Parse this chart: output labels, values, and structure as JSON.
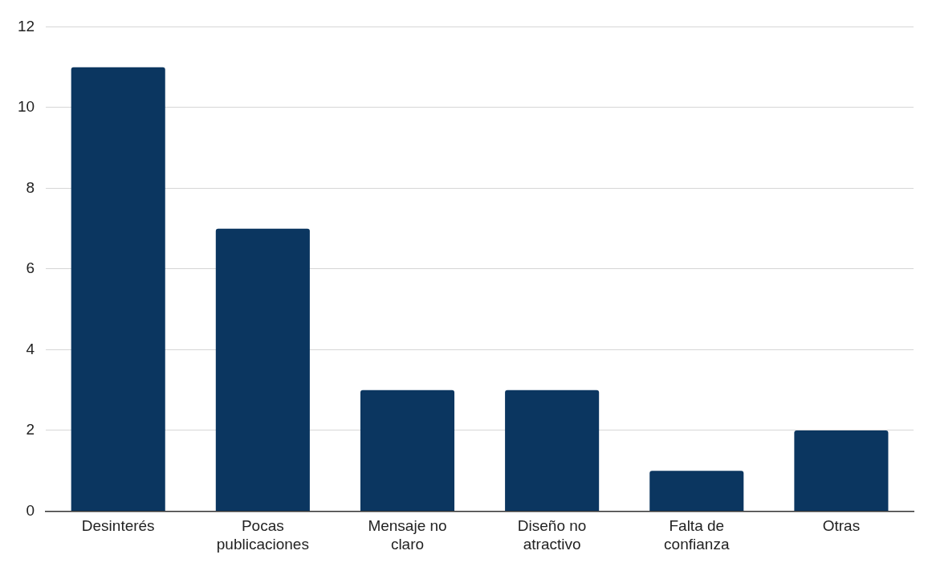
{
  "chart_data": {
    "type": "bar",
    "categories": [
      "Desinterés",
      "Pocas publicaciones",
      "Mensaje no claro",
      "Diseño no atractivo",
      "Falta de confianza",
      "Otras"
    ],
    "values": [
      11,
      7,
      3,
      3,
      1,
      2
    ],
    "color": "#0b3660",
    "ylim": [
      0,
      12
    ],
    "yticks": [
      0,
      2,
      4,
      6,
      8,
      10,
      12
    ],
    "grid": "y",
    "legend": false
  }
}
